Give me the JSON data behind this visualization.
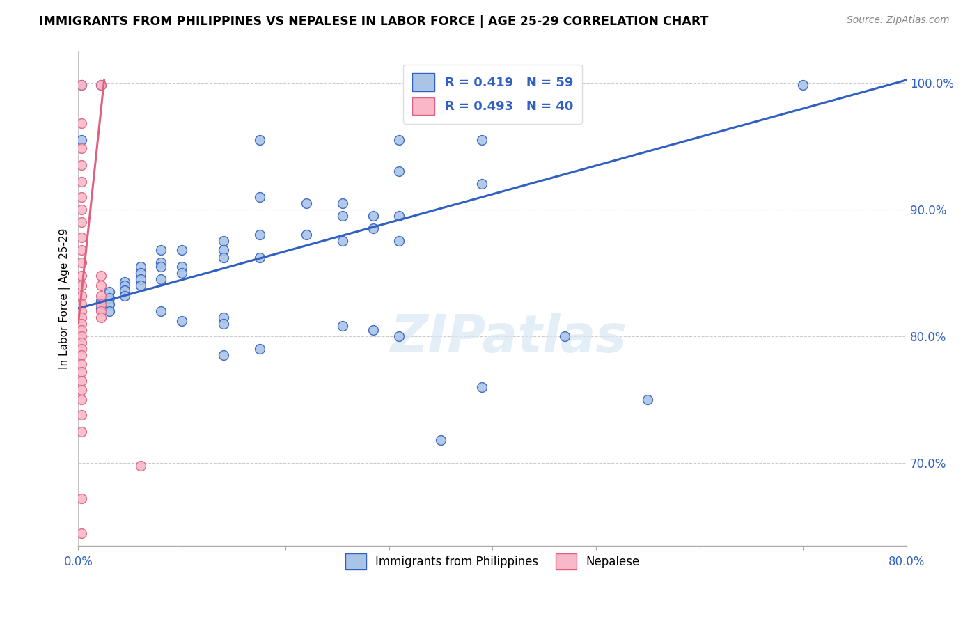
{
  "title": "IMMIGRANTS FROM PHILIPPINES VS NEPALESE IN LABOR FORCE | AGE 25-29 CORRELATION CHART",
  "source": "Source: ZipAtlas.com",
  "ylabel": "In Labor Force | Age 25-29",
  "xlim": [
    0.0,
    0.8
  ],
  "ylim": [
    0.635,
    1.025
  ],
  "yticks": [
    0.7,
    0.8,
    0.9,
    1.0
  ],
  "ytick_labels": [
    "70.0%",
    "80.0%",
    "90.0%",
    "100.0%"
  ],
  "blue_color": "#aac4e8",
  "pink_color": "#f8b8c8",
  "trend_blue": "#3060c0",
  "trend_pink": "#e06080",
  "blue_scatter": [
    [
      0.003,
      0.998
    ],
    [
      0.022,
      0.998
    ],
    [
      0.003,
      0.955
    ],
    [
      0.175,
      0.955
    ],
    [
      0.31,
      0.955
    ],
    [
      0.39,
      0.955
    ],
    [
      0.31,
      0.93
    ],
    [
      0.39,
      0.92
    ],
    [
      0.175,
      0.91
    ],
    [
      0.22,
      0.905
    ],
    [
      0.255,
      0.905
    ],
    [
      0.255,
      0.895
    ],
    [
      0.285,
      0.895
    ],
    [
      0.31,
      0.895
    ],
    [
      0.285,
      0.885
    ],
    [
      0.22,
      0.88
    ],
    [
      0.175,
      0.88
    ],
    [
      0.14,
      0.875
    ],
    [
      0.255,
      0.875
    ],
    [
      0.31,
      0.875
    ],
    [
      0.14,
      0.868
    ],
    [
      0.08,
      0.868
    ],
    [
      0.1,
      0.868
    ],
    [
      0.14,
      0.862
    ],
    [
      0.175,
      0.862
    ],
    [
      0.08,
      0.858
    ],
    [
      0.06,
      0.855
    ],
    [
      0.08,
      0.855
    ],
    [
      0.1,
      0.855
    ],
    [
      0.1,
      0.85
    ],
    [
      0.06,
      0.85
    ],
    [
      0.06,
      0.845
    ],
    [
      0.08,
      0.845
    ],
    [
      0.045,
      0.843
    ],
    [
      0.045,
      0.84
    ],
    [
      0.06,
      0.84
    ],
    [
      0.045,
      0.836
    ],
    [
      0.03,
      0.835
    ],
    [
      0.045,
      0.832
    ],
    [
      0.03,
      0.83
    ],
    [
      0.022,
      0.828
    ],
    [
      0.022,
      0.825
    ],
    [
      0.03,
      0.825
    ],
    [
      0.022,
      0.822
    ],
    [
      0.03,
      0.82
    ],
    [
      0.08,
      0.82
    ],
    [
      0.14,
      0.815
    ],
    [
      0.1,
      0.812
    ],
    [
      0.14,
      0.81
    ],
    [
      0.255,
      0.808
    ],
    [
      0.285,
      0.805
    ],
    [
      0.47,
      0.8
    ],
    [
      0.31,
      0.8
    ],
    [
      0.175,
      0.79
    ],
    [
      0.14,
      0.785
    ],
    [
      0.39,
      0.76
    ],
    [
      0.55,
      0.75
    ],
    [
      0.35,
      0.718
    ],
    [
      0.7,
      0.998
    ]
  ],
  "pink_scatter": [
    [
      0.003,
      0.998
    ],
    [
      0.022,
      0.998
    ],
    [
      0.003,
      0.968
    ],
    [
      0.003,
      0.948
    ],
    [
      0.003,
      0.935
    ],
    [
      0.003,
      0.922
    ],
    [
      0.003,
      0.91
    ],
    [
      0.003,
      0.9
    ],
    [
      0.003,
      0.89
    ],
    [
      0.003,
      0.878
    ],
    [
      0.003,
      0.868
    ],
    [
      0.003,
      0.858
    ],
    [
      0.003,
      0.848
    ],
    [
      0.003,
      0.84
    ],
    [
      0.003,
      0.832
    ],
    [
      0.022,
      0.848
    ],
    [
      0.022,
      0.84
    ],
    [
      0.022,
      0.832
    ],
    [
      0.022,
      0.825
    ],
    [
      0.022,
      0.82
    ],
    [
      0.022,
      0.815
    ],
    [
      0.003,
      0.825
    ],
    [
      0.003,
      0.82
    ],
    [
      0.003,
      0.815
    ],
    [
      0.003,
      0.81
    ],
    [
      0.003,
      0.805
    ],
    [
      0.003,
      0.8
    ],
    [
      0.003,
      0.795
    ],
    [
      0.003,
      0.79
    ],
    [
      0.003,
      0.785
    ],
    [
      0.003,
      0.778
    ],
    [
      0.003,
      0.772
    ],
    [
      0.003,
      0.765
    ],
    [
      0.003,
      0.758
    ],
    [
      0.003,
      0.75
    ],
    [
      0.003,
      0.738
    ],
    [
      0.003,
      0.725
    ],
    [
      0.06,
      0.698
    ],
    [
      0.003,
      0.672
    ],
    [
      0.003,
      0.645
    ]
  ],
  "xtick_positions": [
    0.0,
    0.1,
    0.2,
    0.3,
    0.4,
    0.5,
    0.6,
    0.7,
    0.8
  ]
}
